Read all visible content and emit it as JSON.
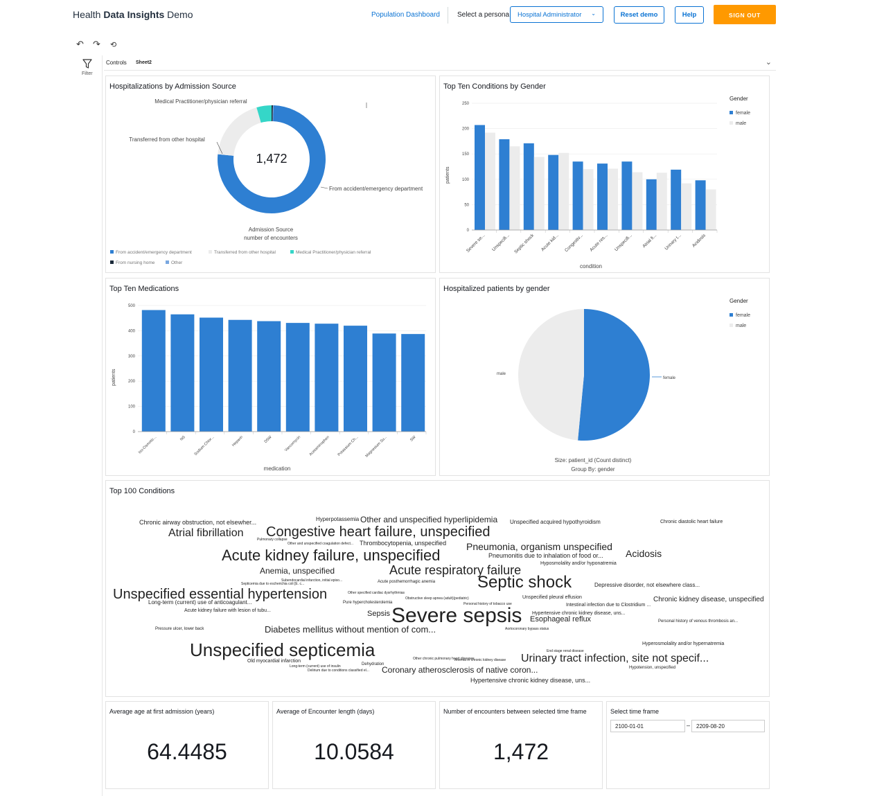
{
  "header": {
    "title_pre": "Health ",
    "title_bold": "Data Insights",
    "title_post": " Demo",
    "nav_link": "Population Dashboard",
    "persona_label": "Select a persona",
    "persona_selected": "Hospital Administrator",
    "reset_label": "Reset demo",
    "help_label": "Help",
    "signout_label": "SIGN OUT"
  },
  "toolbar": {
    "undo_icon": "undo-icon",
    "redo_icon": "redo-icon",
    "reset_icon": "reset-icon",
    "filter_label": "Filter",
    "tabs": [
      "Controls",
      "Sheet2"
    ]
  },
  "donut": {
    "title": "Hospitalizations by Admission Source",
    "center": "1,472",
    "label_mp": "Medical Practitioner/physician referral",
    "label_transfer": "Transferred from other hospital",
    "label_er": "From accident/emergency department",
    "footer_1": "Admission Source",
    "footer_2": "number of encounters",
    "legend": [
      {
        "name": "From accident/emergency department",
        "color": "#2e7fd2"
      },
      {
        "name": "Transferred from other hospital",
        "color": "#ececec"
      },
      {
        "name": "Medical Practitioner/physician referral",
        "color": "#35d6c8"
      },
      {
        "name": "From nursing home",
        "color": "#1b2a3a"
      },
      {
        "name": "Other",
        "color": "#7aa7e0"
      }
    ]
  },
  "gender_bar": {
    "title": "Top Ten Conditions by Gender",
    "legend_title": "Gender",
    "legend_female": "female",
    "legend_male": "male"
  },
  "meds": {
    "title": "Top Ten Medications"
  },
  "pie": {
    "title": "Hospitalized patients by gender",
    "legend_title": "Gender",
    "legend_female": "female",
    "legend_male": "male",
    "label_male": "male",
    "label_female": "female",
    "footer_1": "Size: patient_id (Count distinct)",
    "footer_2": "Group By: gender"
  },
  "cloud": {
    "title": "Top 100 Conditions",
    "words": [
      [
        "Chronic airway obstruction, not elsewher...",
        9
      ],
      [
        "Atrial fibrillation",
        16
      ],
      [
        "Congestive heart failure, unspecified",
        20
      ],
      [
        "Hyperpotassemia",
        8
      ],
      [
        "Other and unspecified hyperlipidemia",
        12
      ],
      [
        "Unspecified acquired hypothyroidism",
        8
      ],
      [
        "Chronic diastolic heart failure",
        7
      ],
      [
        "Acute kidney failure, unspecified",
        22
      ],
      [
        "Pneumonia, organism unspecified",
        14
      ],
      [
        "Acidosis",
        14
      ],
      [
        "Thrombocytopenia, unspecified",
        9
      ],
      [
        "Pneumonitis due to inhalation of food or...",
        9
      ],
      [
        "Anemia, unspecified",
        12
      ],
      [
        "Acute respiratory failure",
        18
      ],
      [
        "Hyposmolality and/or hyponatremia",
        7
      ],
      [
        "Unspecified essential hypertension",
        20
      ],
      [
        "Septic shock",
        24
      ],
      [
        "Depressive disorder, not elsewhere class...",
        8
      ],
      [
        "Chronic kidney disease, unspecified",
        10
      ],
      [
        "Long-term (current) use of anticoagulant...",
        8
      ],
      [
        "Acute kidney failure with lesion of tubu...",
        7
      ],
      [
        "Unspecified pleural effusion",
        7
      ],
      [
        "Intestinal infection due to Clostridium ...",
        7
      ],
      [
        "Sepsis",
        11
      ],
      [
        "Severe sepsis",
        30
      ],
      [
        "Hypertensive chronic kidney disease, uns...",
        7
      ],
      [
        "Esophageal reflux",
        11
      ],
      [
        "Personal history of venous thrombosis an...",
        6
      ],
      [
        "Pressure ulcer, lower back",
        6
      ],
      [
        "Diabetes mellitus without mention of com...",
        13
      ],
      [
        "Unspecified septicemia",
        26
      ],
      [
        "Hyperosmolality and/or hypernatremia",
        7
      ],
      [
        "Urinary tract infection, site not specif...",
        16
      ],
      [
        "Coronary atherosclerosis of native coron...",
        12
      ],
      [
        "Hypertensive chronic kidney disease, uns...",
        9
      ],
      [
        "Hypotension, unspecified",
        6
      ],
      [
        "Old myocardial infarction",
        7
      ],
      [
        "Dehydration",
        6
      ],
      [
        "Pure hypercholesterolemia",
        6
      ],
      [
        "Obstructive sleep apnea (adult)(pediatric)",
        5
      ],
      [
        "Acute posthemorrhagic anemia",
        6
      ],
      [
        "Other chronic pulmonary heart diseases",
        5
      ],
      [
        "Anemia in chronic kidney disease",
        5
      ],
      [
        "End stage renal disease",
        5
      ],
      [
        "Subendocardial infarction, initial episo...",
        5
      ],
      [
        "Septicemia due to escherichia coli [E. c...",
        5
      ],
      [
        "Other specified cardiac dysrhythmias",
        5
      ],
      [
        "Pulmonary collapse",
        5
      ],
      [
        "Other and unspecified coagulation defect...",
        5
      ],
      [
        "Personal history of tobacco use",
        5
      ],
      [
        "Aortocoronary bypass status",
        5
      ],
      [
        "Long-term (current) use of insulin",
        5
      ],
      [
        "Delirium due to conditions classified el...",
        5
      ]
    ]
  },
  "kpis": {
    "avg_age_title": "Average age at first admission (years)",
    "avg_age_value": "64.4485",
    "avg_len_title": "Average of Encounter length (days)",
    "avg_len_value": "10.0584",
    "encounters_title": "Number of encounters between selected time frame",
    "encounters_value": "1,472",
    "timeframe_title": "Select time frame",
    "start_date": "2100-01-01",
    "dash": "–",
    "end_date": "2209-08-20"
  },
  "chart_data": [
    {
      "type": "pie",
      "title": "Hospitalizations by Admission Source",
      "categories": [
        "From accident/emergency department",
        "Transferred from other hospital",
        "Medical Practitioner/physician referral",
        "From nursing home",
        "Other"
      ],
      "values": [
        1117,
        280,
        66,
        6,
        3
      ],
      "total": 1472
    },
    {
      "type": "bar",
      "title": "Top Ten Conditions by Gender",
      "xlabel": "condition",
      "ylabel": "patients",
      "ylim": [
        0,
        250
      ],
      "yticks": [
        0,
        50,
        100,
        150,
        200,
        250
      ],
      "categories": [
        "Severe se...",
        "Unspecifi...",
        "Septic shock",
        "Acute kid...",
        "Congestiv...",
        "Acute res...",
        "Unspecifi...",
        "Atrial fi...",
        "Urinary t...",
        "Acidosis"
      ],
      "series": [
        {
          "name": "female",
          "color": "#2e7fd2",
          "values": [
            207,
            179,
            171,
            148,
            135,
            131,
            135,
            100,
            119,
            98
          ]
        },
        {
          "name": "male",
          "color": "#ececec",
          "values": [
            192,
            165,
            144,
            152,
            120,
            121,
            114,
            113,
            92,
            80
          ]
        }
      ],
      "legend": "top-right"
    },
    {
      "type": "bar",
      "title": "Top Ten Medications",
      "xlabel": "medication",
      "ylabel": "patients",
      "ylim": [
        0,
        500
      ],
      "yticks": [
        0,
        100,
        200,
        300,
        400,
        500
      ],
      "yticklabels": [
        "0",
        "100",
        "200",
        "300",
        "400",
        "500"
      ],
      "categories": [
        "Iso-Osmotic...",
        "NS",
        "Sodium Chlor...",
        "Heparin",
        "D5W",
        "Vancomycin",
        "Acetaminophen",
        "Potassium Ch...",
        "Magnesium Su...",
        "SW"
      ],
      "values": [
        482,
        465,
        452,
        443,
        438,
        431,
        428,
        420,
        389,
        387
      ],
      "color": "#2e7fd2"
    },
    {
      "type": "pie",
      "title": "Hospitalized patients by gender",
      "categories": [
        "female",
        "male"
      ],
      "values": [
        51.5,
        48.5
      ],
      "colors": [
        "#2e7fd2",
        "#ececec"
      ]
    }
  ]
}
